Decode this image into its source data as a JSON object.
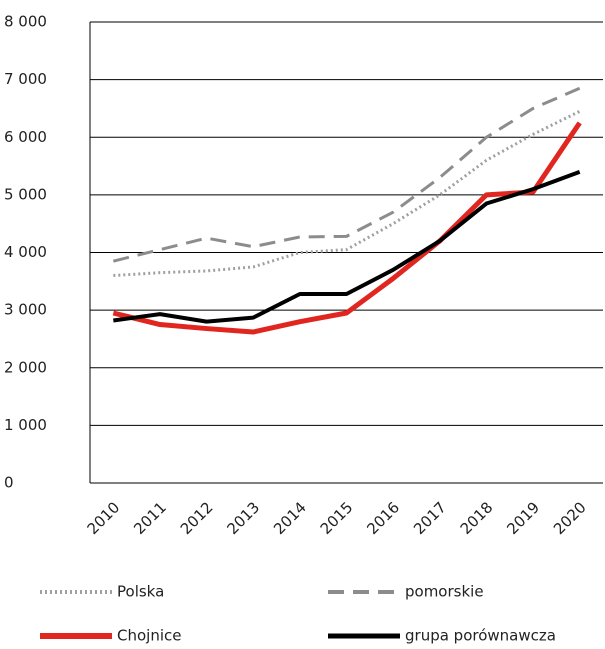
{
  "chart_data": {
    "type": "line",
    "categories": [
      "2010",
      "2011",
      "2012",
      "2013",
      "2014",
      "2015",
      "2016",
      "2017",
      "2018",
      "2019",
      "2020"
    ],
    "series": [
      {
        "name": "Polska",
        "color": "#a0a0a0",
        "style": "dotted",
        "values": [
          3600,
          3650,
          3680,
          3750,
          4000,
          4050,
          4500,
          5000,
          5600,
          6050,
          6450
        ]
      },
      {
        "name": "pomorskie",
        "color": "#8c8c8c",
        "style": "dashed",
        "values": [
          3850,
          4050,
          4250,
          4100,
          4270,
          4280,
          4700,
          5300,
          6000,
          6500,
          6850
        ]
      },
      {
        "name": "Chojnice",
        "color": "#e0261f",
        "style": "solid",
        "values": [
          2950,
          2750,
          2680,
          2620,
          2800,
          2950,
          3550,
          4200,
          5000,
          5050,
          6250
        ]
      },
      {
        "name": "grupa porównawcza",
        "color": "#000000",
        "style": "solid",
        "values": [
          2820,
          2930,
          2800,
          2870,
          3280,
          3280,
          3700,
          4200,
          4850,
          5100,
          5400
        ]
      }
    ],
    "ylim": [
      0,
      8000
    ],
    "yticks": [
      0,
      {
        "value": 1000,
        "label": "1 000"
      },
      {
        "value": 2000,
        "label": "2 000"
      },
      {
        "value": 3000,
        "label": "3 000"
      },
      {
        "value": 4000,
        "label": "4 000"
      },
      {
        "value": 5000,
        "label": "5 000"
      },
      {
        "value": 6000,
        "label": "6 000"
      },
      {
        "value": 7000,
        "label": "7 000"
      },
      {
        "value": 8000,
        "label": "8 000"
      }
    ],
    "grid": true
  }
}
